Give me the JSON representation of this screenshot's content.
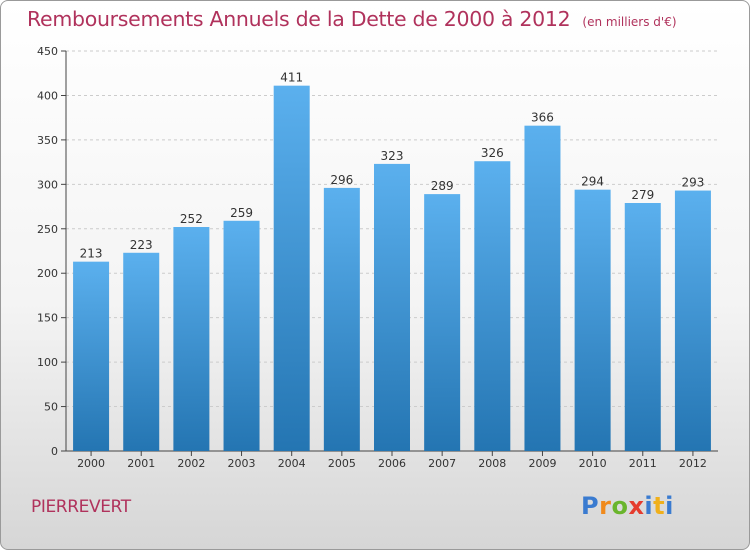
{
  "header": {
    "title": "Remboursements Annuels de la Dette de 2000 à 2012",
    "subtitle": "(en milliers d'€)"
  },
  "footer": {
    "commune": "PIERREVERT",
    "logo": "Proxiti"
  },
  "colors": {
    "title": "#b0325c",
    "bar_top": "#5bb0ee",
    "bar_bottom": "#2475b2",
    "grid": "#cccccc",
    "axis": "#444444"
  },
  "chart_data": {
    "type": "bar",
    "title": "Remboursements Annuels de la Dette de 2000 à 2012",
    "subtitle": "(en milliers d'€)",
    "categories": [
      "2000",
      "2001",
      "2002",
      "2003",
      "2004",
      "2005",
      "2006",
      "2007",
      "2008",
      "2009",
      "2010",
      "2011",
      "2012"
    ],
    "values": [
      213,
      223,
      252,
      259,
      411,
      296,
      323,
      289,
      326,
      366,
      294,
      279,
      293
    ],
    "data_labels": [
      "213",
      "223",
      "252",
      "259",
      "411",
      "296",
      "323",
      "289",
      "326",
      "366",
      "294",
      "279",
      "293"
    ],
    "ylim": [
      0,
      450
    ],
    "yticks": [
      0,
      50,
      100,
      150,
      200,
      250,
      300,
      350,
      400,
      450
    ],
    "ytick_labels": [
      "0",
      "50",
      "100",
      "150",
      "200",
      "250",
      "300",
      "350",
      "400",
      "450"
    ],
    "xlabel": "",
    "ylabel": "",
    "grid": true,
    "legend": "none"
  }
}
